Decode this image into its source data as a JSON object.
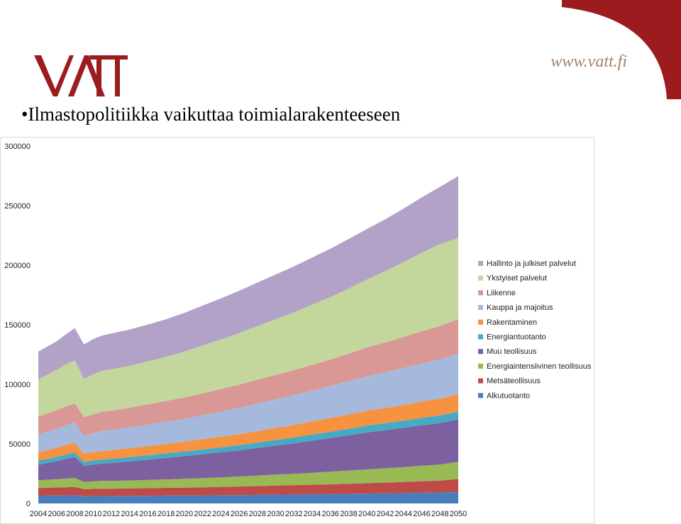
{
  "header": {
    "url": "www.vatt.fi",
    "title": "•Ilmastopolitiikka vaikuttaa toimialarakenteeseen"
  },
  "colors": {
    "brand_red": "#9b1b1f",
    "url_color": "#a6846a"
  },
  "chart_data": {
    "type": "area",
    "stacked": true,
    "title": "",
    "xlabel": "",
    "ylabel": "",
    "ylim": [
      0,
      300000
    ],
    "yticks": [
      0,
      50000,
      100000,
      150000,
      200000,
      250000,
      300000
    ],
    "xtick_labels": [
      "2004",
      "2006",
      "2008",
      "2010",
      "2012",
      "2014",
      "2016",
      "2018",
      "2020",
      "2022",
      "2024",
      "2026",
      "2028",
      "2030",
      "2032",
      "2034",
      "2036",
      "2038",
      "2040",
      "2042",
      "2044",
      "2046",
      "2048",
      "2050"
    ],
    "x": [
      2004,
      2005,
      2006,
      2007,
      2008,
      2009,
      2010,
      2011,
      2012,
      2014,
      2016,
      2018,
      2020,
      2022,
      2024,
      2026,
      2028,
      2030,
      2032,
      2034,
      2036,
      2038,
      2040,
      2042,
      2044,
      2046,
      2048,
      2050
    ],
    "legend_position": "right",
    "series": [
      {
        "name": "Alkutuotanto",
        "color": "#4a7ebb",
        "values": [
          6500,
          6600,
          6700,
          6800,
          6900,
          6100,
          6200,
          6300,
          6300,
          6400,
          6500,
          6600,
          6700,
          6800,
          6900,
          7000,
          7200,
          7400,
          7500,
          7700,
          7900,
          8100,
          8300,
          8500,
          8700,
          9000,
          9200,
          9500
        ]
      },
      {
        "name": "Metsäteollisuus",
        "color": "#be4b48",
        "values": [
          6500,
          6600,
          6700,
          6800,
          6900,
          5900,
          6000,
          6100,
          6100,
          6200,
          6300,
          6500,
          6600,
          6800,
          7000,
          7200,
          7400,
          7600,
          7800,
          8000,
          8200,
          8400,
          8700,
          9000,
          9300,
          9600,
          10000,
          11000
        ]
      },
      {
        "name": "Energiaintensiivinen teollisuus",
        "color": "#98b954",
        "values": [
          6500,
          6700,
          7000,
          7300,
          7600,
          6100,
          6400,
          6600,
          6500,
          6700,
          6900,
          7100,
          7400,
          7700,
          8000,
          8400,
          8800,
          9200,
          9600,
          10100,
          10600,
          11100,
          11600,
          12000,
          12500,
          13000,
          13500,
          14500
        ]
      },
      {
        "name": "Muu teollisuus",
        "color": "#7d60a0",
        "values": [
          13000,
          14000,
          15000,
          16500,
          17500,
          13500,
          14000,
          14500,
          15000,
          16000,
          17000,
          18000,
          19000,
          20000,
          21000,
          22000,
          23200,
          24400,
          25600,
          26900,
          28200,
          29600,
          31000,
          32000,
          33000,
          34000,
          34800,
          35500
        ]
      },
      {
        "name": "Energiantuotanto",
        "color": "#46aac5",
        "values": [
          3500,
          3500,
          3600,
          3700,
          3800,
          3300,
          3400,
          3400,
          3500,
          3600,
          3700,
          3800,
          3900,
          4000,
          4200,
          4300,
          4500,
          4700,
          4900,
          5100,
          5300,
          5500,
          5700,
          5800,
          6000,
          6200,
          6400,
          6600
        ]
      },
      {
        "name": "Rakentaminen",
        "color": "#f69240",
        "values": [
          7000,
          7300,
          7700,
          8000,
          8200,
          6900,
          7000,
          7100,
          7300,
          7500,
          7700,
          8000,
          8300,
          8600,
          8900,
          9300,
          9700,
          10100,
          10500,
          11000,
          11500,
          12000,
          12500,
          12800,
          13200,
          13700,
          14100,
          14600
        ]
      },
      {
        "name": "Kauppa ja majoitus",
        "color": "#a5b9dc",
        "values": [
          15000,
          15500,
          16000,
          16500,
          17000,
          15000,
          16000,
          17000,
          17000,
          17500,
          18000,
          18500,
          19000,
          20000,
          21000,
          22000,
          23000,
          24000,
          25000,
          26000,
          27000,
          28000,
          29000,
          30000,
          31000,
          32000,
          33000,
          34000
        ]
      },
      {
        "name": "Liikenne",
        "color": "#d99795",
        "values": [
          15000,
          15300,
          15600,
          15700,
          16000,
          15700,
          15900,
          16000,
          16000,
          16500,
          17000,
          17500,
          18000,
          18500,
          19000,
          19500,
          20000,
          20500,
          21000,
          21500,
          22000,
          23000,
          24000,
          25000,
          26000,
          27000,
          28000,
          29000
        ]
      },
      {
        "name": "Ykstyiset palvelut",
        "color": "#c3d69b",
        "values": [
          31000,
          32500,
          33800,
          35500,
          36200,
          32000,
          33500,
          34500,
          35000,
          35100,
          36100,
          37100,
          38600,
          40200,
          41600,
          43300,
          45100,
          46800,
          48600,
          50600,
          52600,
          54800,
          57100,
          59900,
          62800,
          65900,
          68800,
          68200
        ]
      },
      {
        "name": "Hallinto ja julkiset palvelut",
        "color": "#b2a2c7",
        "values": [
          23500,
          23800,
          24000,
          25000,
          27000,
          29000,
          29500,
          29500,
          30000,
          30500,
          31000,
          31500,
          32500,
          33500,
          34500,
          35500,
          36500,
          37500,
          38500,
          39500,
          40500,
          41500,
          42500,
          43500,
          45000,
          46500,
          48000,
          52000
        ]
      }
    ]
  }
}
